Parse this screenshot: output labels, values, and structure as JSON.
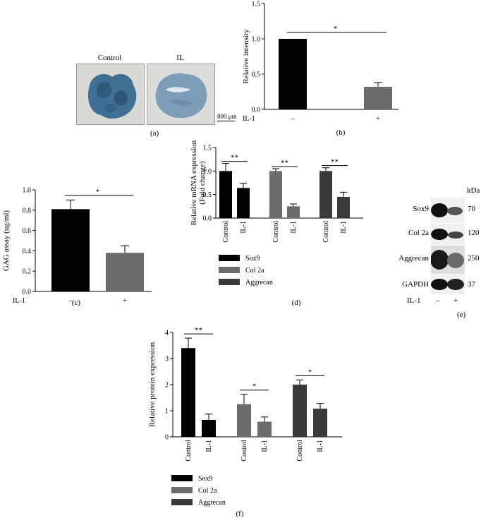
{
  "panel_letters": {
    "a": "(a)",
    "b": "(b)",
    "c": "(c)",
    "d": "(d)",
    "e": "(e)",
    "f": "(f)"
  },
  "histology": {
    "control_label": "Control",
    "il_label": "IL",
    "scale_bar": "800 μm"
  },
  "western_blot": {
    "kda_header": "kDa",
    "rows": [
      {
        "name": "Sox9",
        "kda": "70"
      },
      {
        "name": "Col 2a",
        "kda": "120"
      },
      {
        "name": "Aggrecan",
        "kda": "250"
      },
      {
        "name": "GAPDH",
        "kda": "37"
      }
    ],
    "treatment_label": "IL-1",
    "treatment_values": [
      "–",
      "+"
    ]
  },
  "colors": {
    "black": "#000000",
    "gray": "#6b6b6b",
    "dark_gray": "#3a3a3a"
  },
  "chart_data": [
    {
      "id": "b",
      "type": "bar",
      "ylabel": "Relative intensity",
      "ylim": [
        0,
        1.5
      ],
      "yticks": [
        "0.0",
        "0.5",
        "1.0",
        "1.5"
      ],
      "treatment_label": "IL-1",
      "categories": [
        "–",
        "+"
      ],
      "values": [
        1.0,
        0.32
      ],
      "errors": [
        0,
        0.06
      ],
      "colors": [
        "#000000",
        "#6b6b6b"
      ],
      "significance": "*"
    },
    {
      "id": "c",
      "type": "bar",
      "ylabel": "GAG assay (ug/ml)",
      "ylim": [
        0,
        1.0
      ],
      "yticks": [
        "0.0",
        "0.2",
        "0.4",
        "0.6",
        "0.8",
        "1.0"
      ],
      "treatment_label": "IL-1",
      "categories": [
        "–",
        "+"
      ],
      "values": [
        0.81,
        0.38
      ],
      "errors": [
        0.09,
        0.07
      ],
      "colors": [
        "#000000",
        "#6b6b6b"
      ],
      "significance": "*"
    },
    {
      "id": "d",
      "type": "bar",
      "ylabel": "Relative mRNA expression (Fold change)",
      "ylabel_lines": [
        "Relative mRNA expression",
        "(Fold change)"
      ],
      "ylim": [
        0,
        1.5
      ],
      "yticks": [
        "0.0",
        "0.5",
        "1.0",
        "1.5"
      ],
      "categories": [
        "Control",
        "IL-1"
      ],
      "series": [
        {
          "name": "Sox9",
          "values": [
            1.0,
            0.64
          ],
          "errors": [
            0.16,
            0.1
          ],
          "color": "#000000",
          "significance": "**"
        },
        {
          "name": "Col 2a",
          "values": [
            1.0,
            0.25
          ],
          "errors": [
            0.05,
            0.05
          ],
          "color": "#6b6b6b",
          "significance": "**"
        },
        {
          "name": "Aggrecan",
          "values": [
            1.0,
            0.45
          ],
          "errors": [
            0.07,
            0.1
          ],
          "color": "#3a3a3a",
          "significance": "**"
        }
      ]
    },
    {
      "id": "f",
      "type": "bar",
      "ylabel": "Relative protein expression",
      "ylim": [
        0,
        4
      ],
      "yticks": [
        "0",
        "1",
        "2",
        "3",
        "4"
      ],
      "categories": [
        "Control",
        "IL-1"
      ],
      "series": [
        {
          "name": "Sox9",
          "values": [
            3.4,
            0.65
          ],
          "errors": [
            0.38,
            0.22
          ],
          "color": "#000000",
          "significance": "**"
        },
        {
          "name": "Col 2a",
          "values": [
            1.25,
            0.58
          ],
          "errors": [
            0.38,
            0.18
          ],
          "color": "#6b6b6b",
          "significance": "*"
        },
        {
          "name": "Aggrecan",
          "values": [
            2.0,
            1.08
          ],
          "errors": [
            0.18,
            0.2
          ],
          "color": "#3a3a3a",
          "significance": "*"
        }
      ]
    }
  ]
}
